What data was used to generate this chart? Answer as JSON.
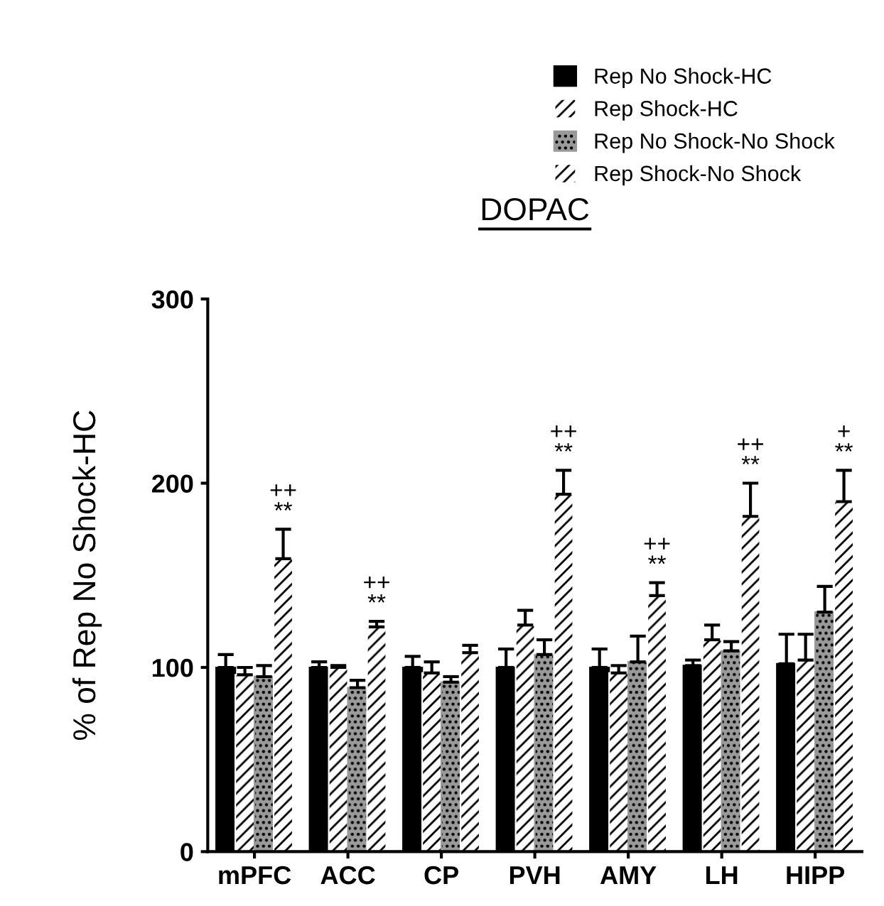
{
  "chart_data": {
    "type": "bar",
    "title": "DOPAC",
    "ylabel": "% of Rep No Shock-HC",
    "categories": [
      "mPFC",
      "ACC",
      "CP",
      "PVH",
      "AMY",
      "LH",
      "HIPP"
    ],
    "series": [
      {
        "name": "Rep No Shock-HC",
        "color": "#000000",
        "values": [
          100,
          100,
          100,
          100,
          100,
          101,
          102
        ],
        "errors": [
          7,
          3,
          6,
          10,
          10,
          3,
          16
        ]
      },
      {
        "name": "Rep Shock-HC",
        "color": "#ffffff",
        "values": [
          96,
          100,
          97,
          123,
          97,
          115,
          104
        ],
        "errors": [
          4,
          1,
          6,
          8,
          4,
          8,
          14
        ]
      },
      {
        "name": "Rep No Shock-No Shock",
        "color": "#9a9a9a",
        "values": [
          95,
          89,
          92,
          107,
          103,
          109,
          130
        ],
        "errors": [
          6,
          4,
          3,
          8,
          14,
          5,
          14
        ]
      },
      {
        "name": "Rep Shock-No Shock",
        "color": "#ffffff",
        "values": [
          159,
          122,
          108,
          194,
          139,
          182,
          190
        ],
        "errors": [
          16,
          3,
          4,
          13,
          7,
          18,
          17
        ],
        "value_labels": [
          "++\n**",
          "++\n**",
          null,
          "++\n**",
          "++\n**",
          "++\n**",
          "+\n**"
        ]
      }
    ],
    "ylim": [
      0,
      300
    ],
    "yticks": [
      0,
      100,
      200,
      300
    ],
    "legend": "top right"
  }
}
